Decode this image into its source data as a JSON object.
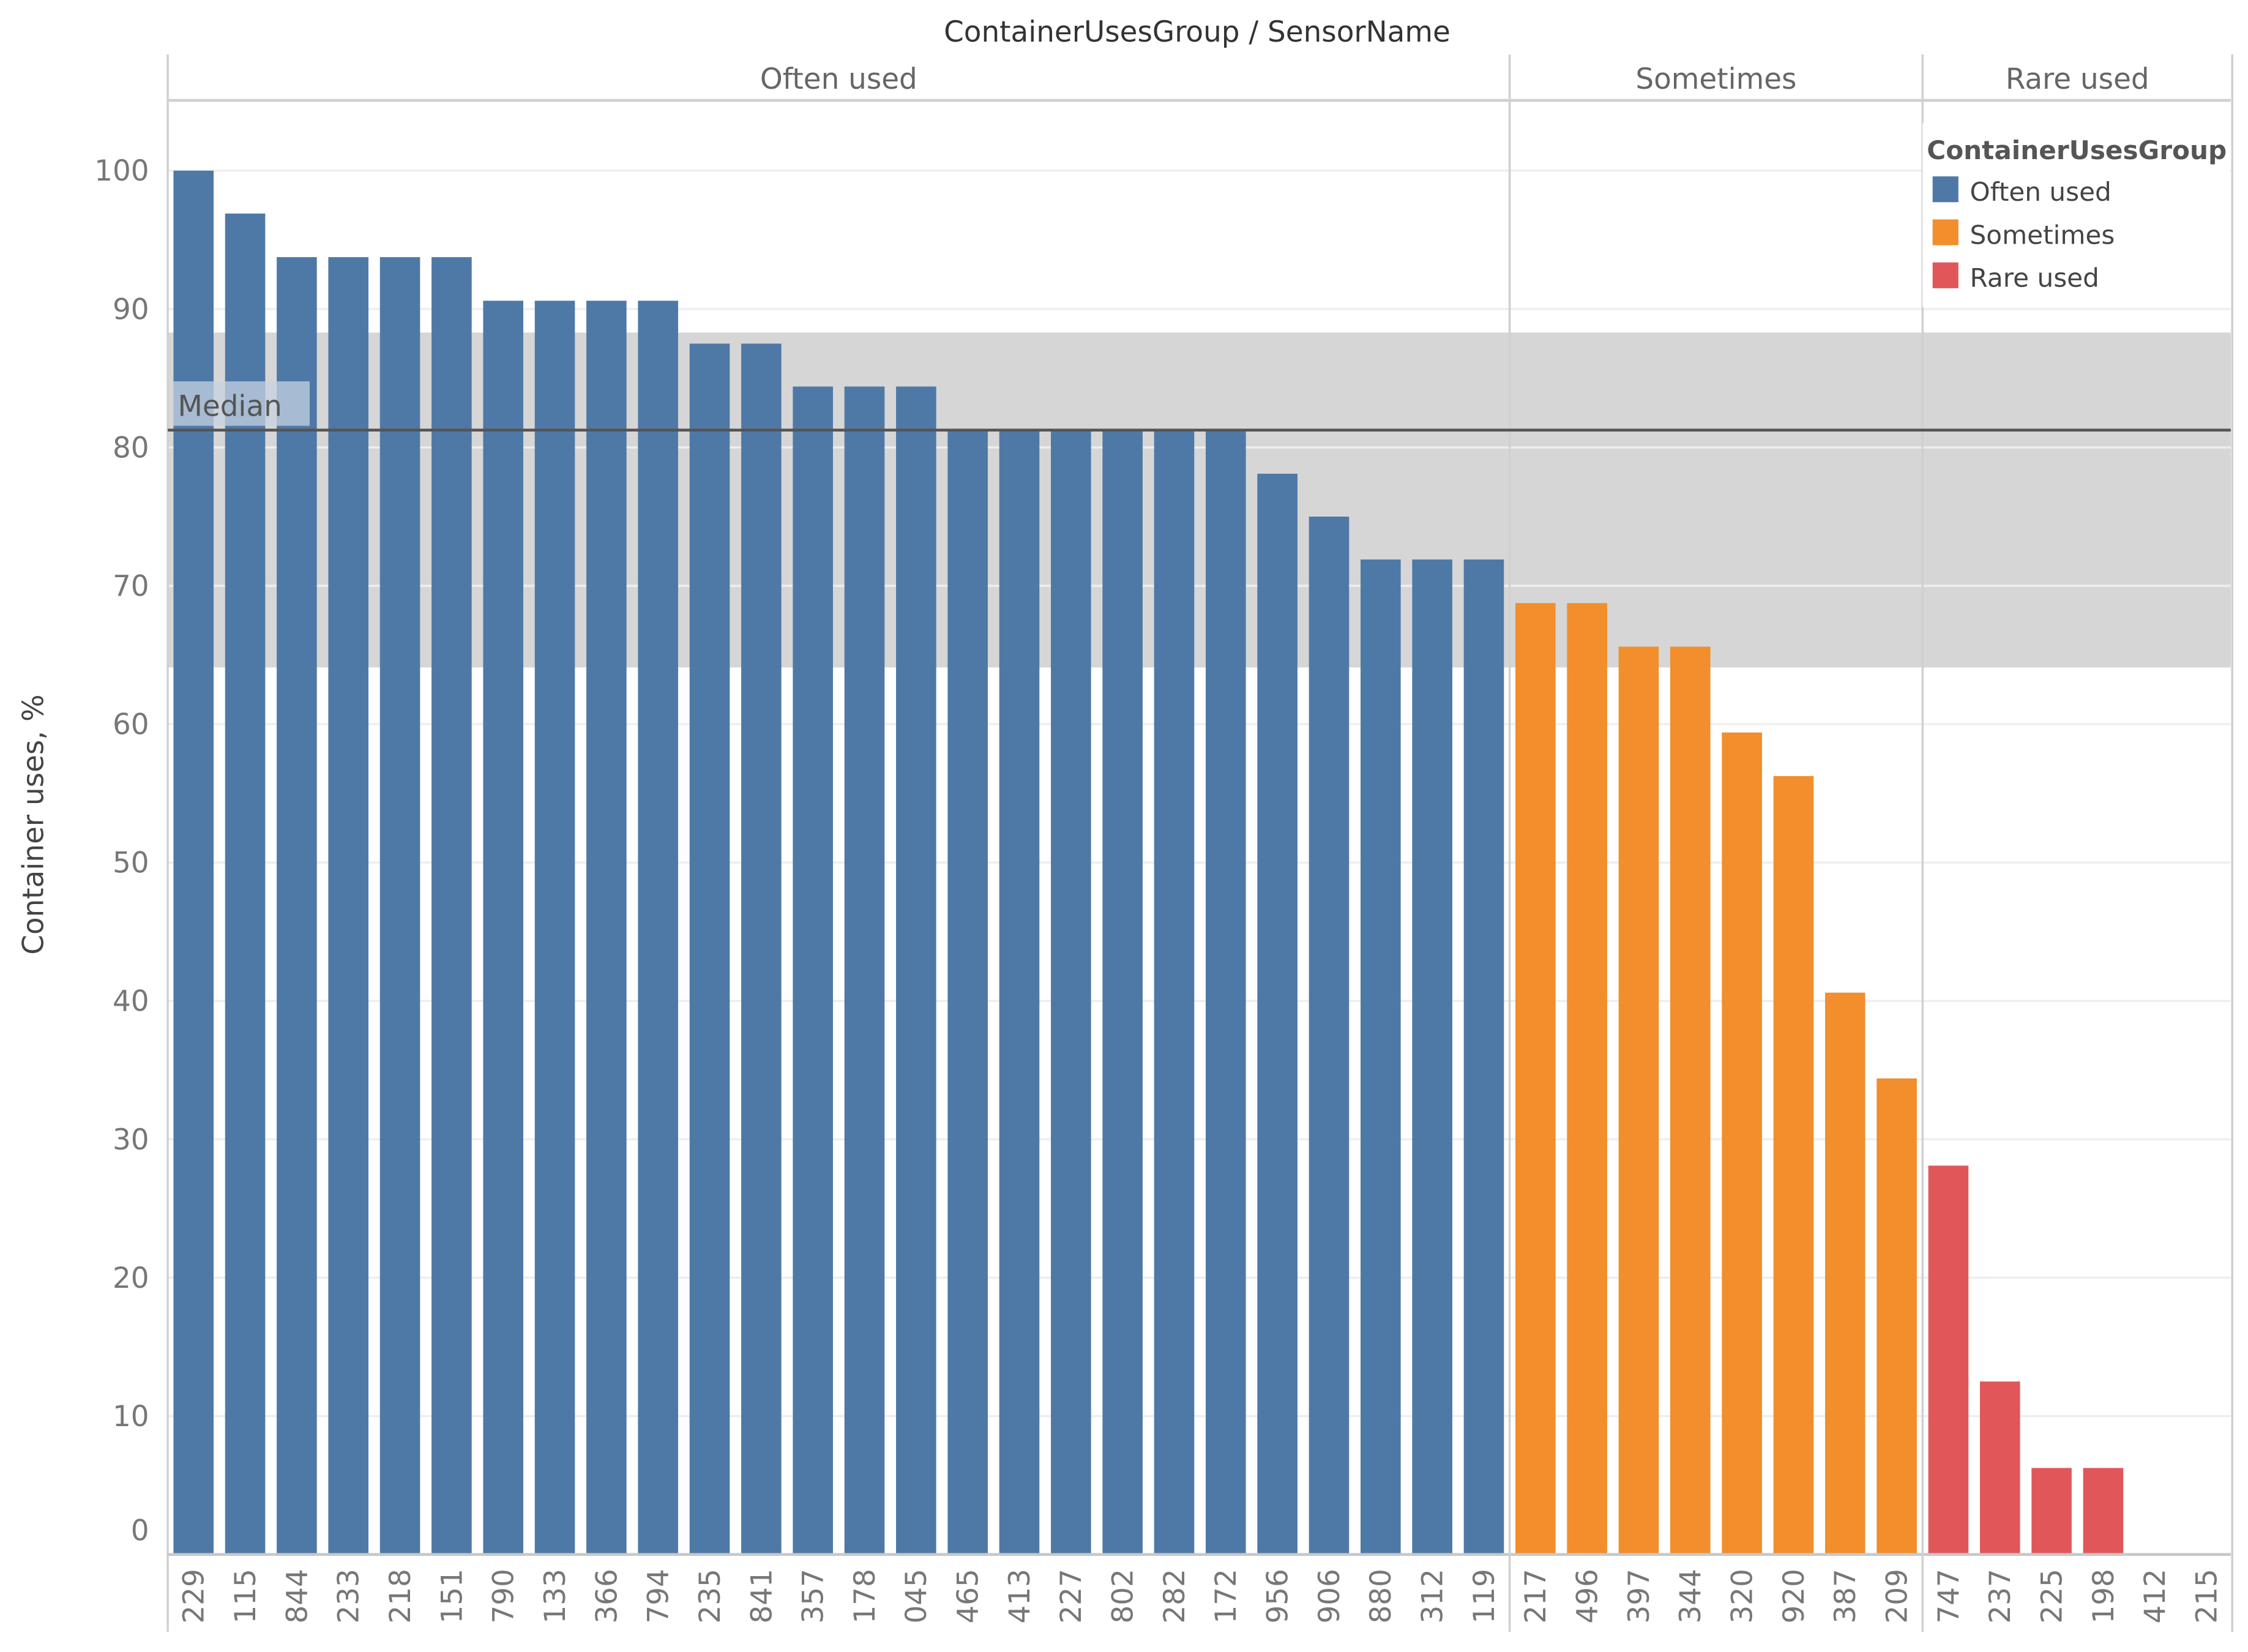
{
  "chart_data": {
    "type": "bar",
    "title": "ContainerUsesGroup / SensorName",
    "xlabel": "",
    "ylabel": "Container uses, %",
    "ylim": [
      0,
      100
    ],
    "yticks": [
      0,
      10,
      20,
      30,
      40,
      50,
      60,
      70,
      80,
      90,
      100
    ],
    "grid": true,
    "legend": {
      "title": "ContainerUsesGroup",
      "placement": "top-right",
      "entries": [
        "Often used",
        "Sometimes",
        "Rare used"
      ]
    },
    "colors": {
      "Often used": "#4e79a7",
      "Sometimes": "#f28e2b",
      "Rare used": "#e15759"
    },
    "panes": [
      {
        "name": "Often used",
        "categories": [
          "229",
          "115",
          "844",
          "233",
          "218",
          "151",
          "790",
          "133",
          "366",
          "794",
          "235",
          "841",
          "357",
          "178",
          "045",
          "465",
          "413",
          "227",
          "802",
          "282",
          "172",
          "956",
          "906",
          "880",
          "312",
          "119"
        ],
        "values": [
          100,
          96.9,
          93.75,
          93.75,
          93.75,
          93.75,
          90.6,
          90.6,
          90.6,
          90.6,
          87.5,
          87.5,
          84.4,
          84.4,
          84.4,
          81.25,
          81.25,
          81.25,
          81.25,
          81.25,
          81.25,
          78.1,
          75,
          71.9,
          71.9,
          71.9
        ]
      },
      {
        "name": "Sometimes",
        "categories": [
          "217",
          "496",
          "397",
          "344",
          "320",
          "920",
          "387",
          "209"
        ],
        "values": [
          68.75,
          68.75,
          65.6,
          65.6,
          59.4,
          56.25,
          40.6,
          34.4
        ]
      },
      {
        "name": "Rare used",
        "categories": [
          "747",
          "237",
          "225",
          "198",
          "412",
          "215"
        ],
        "values": [
          28.1,
          12.5,
          6.25,
          6.25,
          0,
          0
        ]
      }
    ],
    "reference_line": {
      "label": "Median",
      "value": 81.25
    },
    "reference_band": {
      "from": 64.1,
      "to": 88.3,
      "color": "#d6d6d6"
    }
  }
}
